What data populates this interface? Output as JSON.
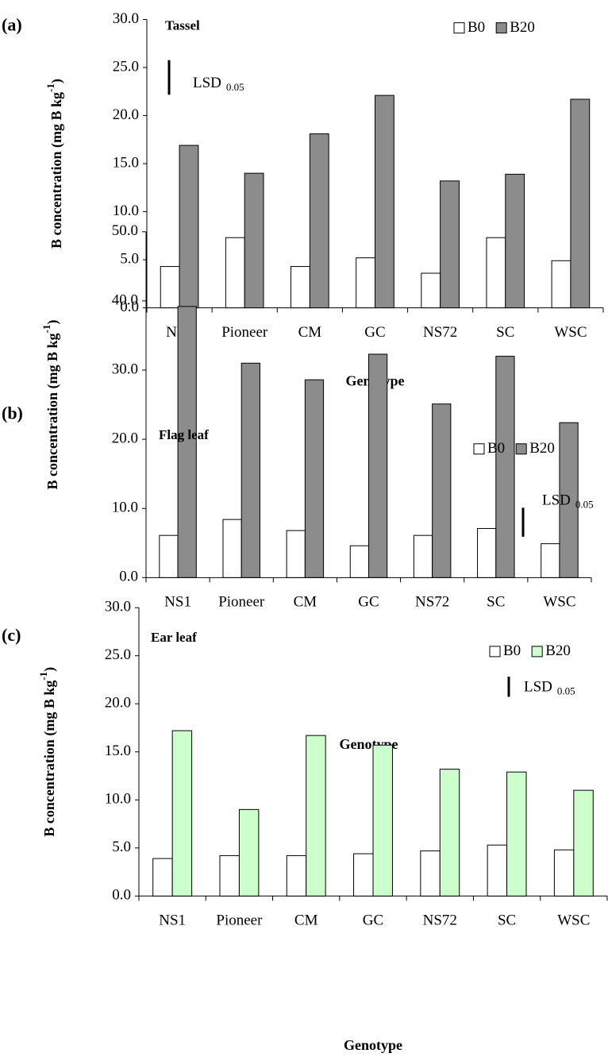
{
  "chart_data": [
    {
      "type": "bar",
      "panel": "(a)",
      "title": "Tassel",
      "x_label": "Genotype",
      "y_label": "B concentration (mg B kg",
      "y_label_sup": "-1",
      "y_label_end": ")",
      "annotation": "LSD",
      "annotation_sub": "0.05",
      "lsd": 3.6,
      "categories": [
        "NS1",
        "Pioneer",
        "CM",
        "GC",
        "NS72",
        "SC",
        "WSC"
      ],
      "series": [
        {
          "name": "B0",
          "color": "#ffffff",
          "values": [
            4.3,
            7.3,
            4.3,
            5.2,
            3.6,
            7.3,
            4.9
          ]
        },
        {
          "name": "B20",
          "color": "#8c8c8c",
          "values": [
            16.9,
            14.0,
            18.1,
            22.1,
            13.2,
            13.9,
            21.7
          ]
        }
      ],
      "ylim": [
        0,
        30
      ],
      "yticks": [
        {
          "value": 0,
          "label": "0.0"
        },
        {
          "value": 5,
          "label": "5.0"
        },
        {
          "value": 10,
          "label": "10.0"
        },
        {
          "value": 15,
          "label": "15.0"
        },
        {
          "value": 20,
          "label": "20.0"
        },
        {
          "value": 25,
          "label": "25.0"
        },
        {
          "value": 30,
          "label": "30.0"
        }
      ]
    },
    {
      "type": "bar",
      "panel": "(b)",
      "title": "Flag leaf",
      "x_label": "Genotype",
      "y_label": "B concentration (mg B kg",
      "y_label_sup": "-1",
      "y_label_end": ")",
      "annotation": "LSD",
      "annotation_sub": "0.05",
      "lsd": 4.2,
      "categories": [
        "NS1",
        "Pioneer",
        "CM",
        "GC",
        "NS72",
        "SC",
        "WSC"
      ],
      "series": [
        {
          "name": "B0",
          "color": "#ffffff",
          "values": [
            6.1,
            8.4,
            6.8,
            4.6,
            6.1,
            7.1,
            4.9
          ]
        },
        {
          "name": "B20",
          "color": "#8c8c8c",
          "values": [
            39.2,
            31.0,
            28.6,
            32.3,
            25.1,
            32.0,
            22.4
          ]
        }
      ],
      "ylim": [
        0,
        50
      ],
      "yticks": [
        {
          "value": 0,
          "label": "0.0"
        },
        {
          "value": 10,
          "label": "10.0"
        },
        {
          "value": 20,
          "label": "20.0"
        },
        {
          "value": 30,
          "label": "30.0"
        },
        {
          "value": 40,
          "label": "40.0"
        },
        {
          "value": 50,
          "label": "50.0"
        }
      ]
    },
    {
      "type": "bar",
      "panel": "(c)",
      "title": "Ear leaf",
      "x_label": "Genotype",
      "y_label": "B concentration (mg B kg",
      "y_label_sup": "-1",
      "y_label_end": ")",
      "annotation": "LSD",
      "annotation_sub": "0.05",
      "lsd": 2.1,
      "categories": [
        "NS1",
        "Pioneer",
        "CM",
        "GC",
        "NS72",
        "SC",
        "WSC"
      ],
      "series": [
        {
          "name": "B0",
          "color": "#ffffff",
          "values": [
            3.9,
            4.2,
            4.2,
            4.4,
            4.7,
            5.3,
            4.8
          ]
        },
        {
          "name": "B20",
          "color": "#ccffcc",
          "values": [
            17.2,
            9.0,
            16.7,
            15.7,
            13.2,
            12.9,
            11.0
          ]
        }
      ],
      "ylim": [
        0,
        30
      ],
      "yticks": [
        {
          "value": 0,
          "label": "0.0"
        },
        {
          "value": 5,
          "label": "5.0"
        },
        {
          "value": 10,
          "label": "10.0"
        },
        {
          "value": 15,
          "label": "15.0"
        },
        {
          "value": 20,
          "label": "20.0"
        },
        {
          "value": 25,
          "label": "25.0"
        },
        {
          "value": 30,
          "label": "30.0"
        }
      ]
    }
  ]
}
